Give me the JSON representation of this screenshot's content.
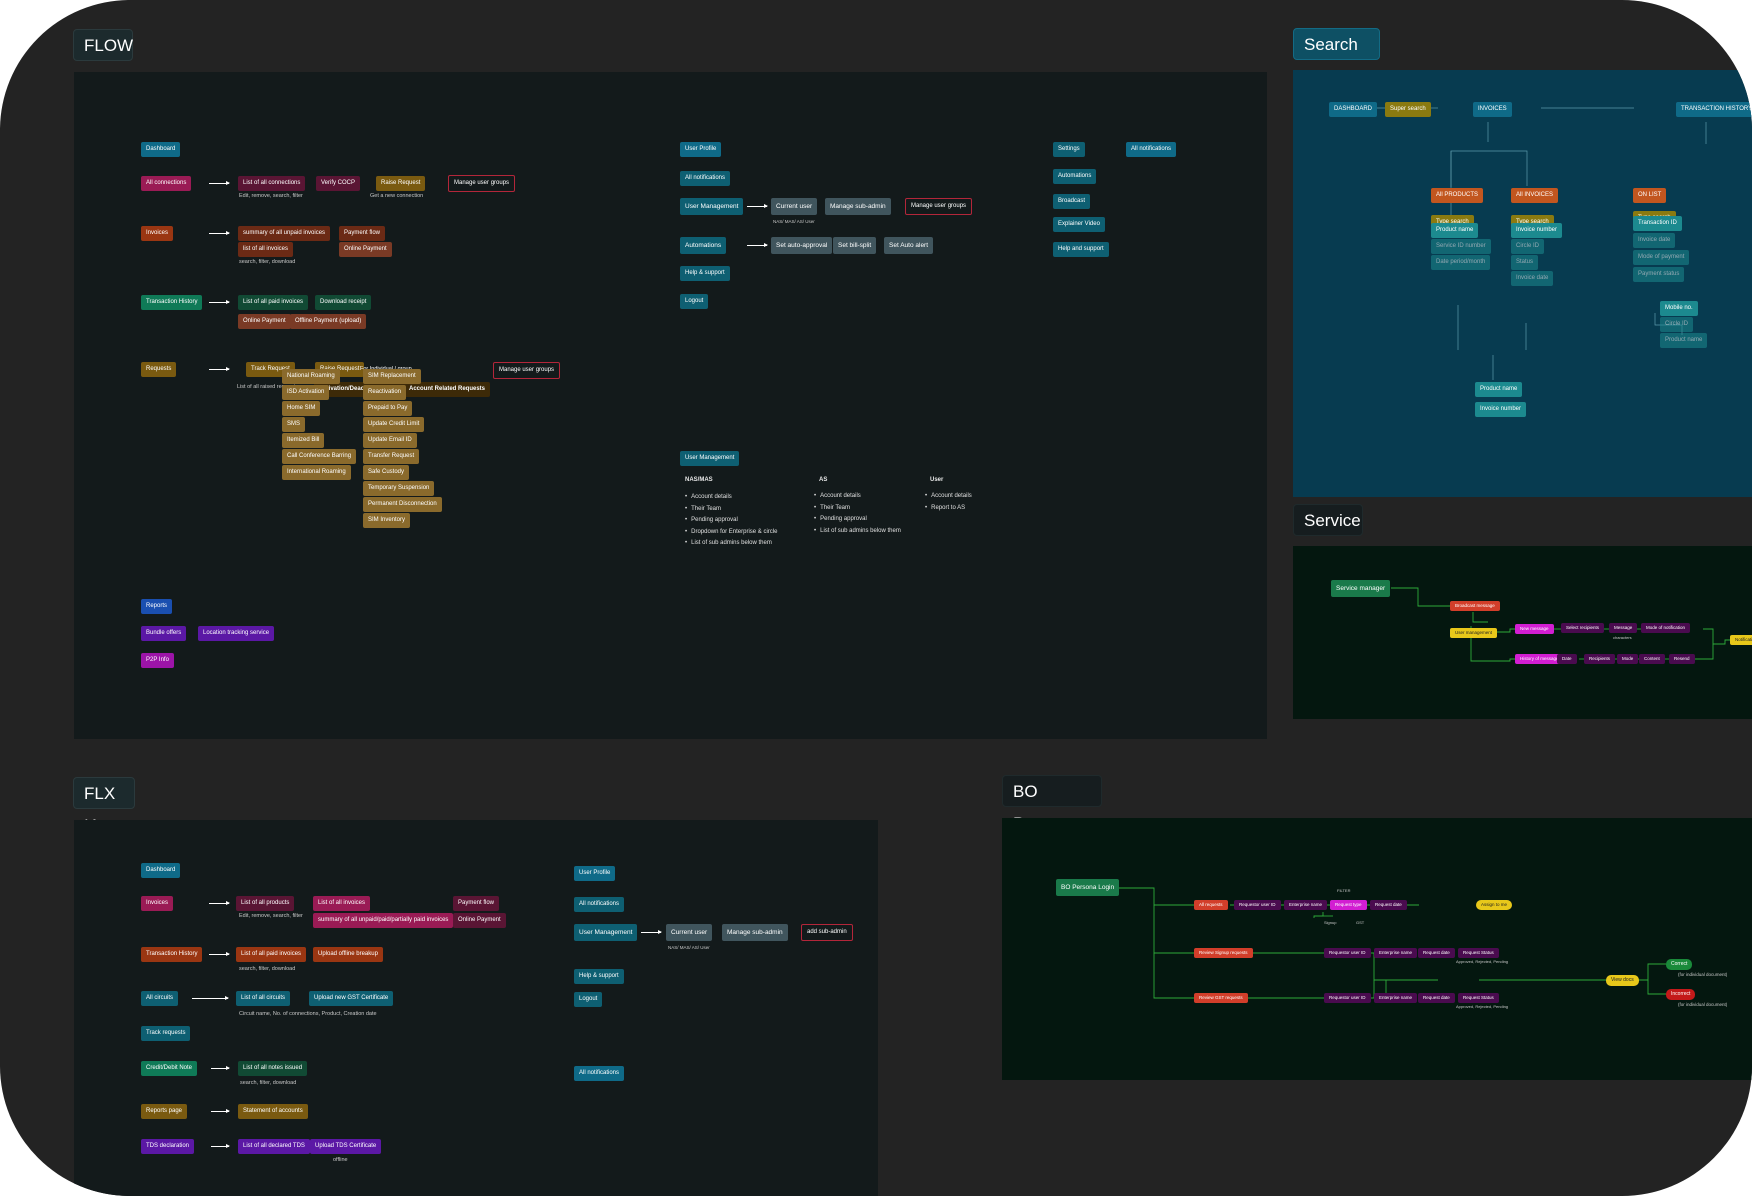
{
  "labels": {
    "flow": "FLOW",
    "search_ia": "Search IA",
    "service": "Service",
    "flx_ia": "FLX IA",
    "bo_persona": "BO Persona"
  },
  "flow": {
    "dashboard": "Dashboard",
    "all_connections": "All connections",
    "list_all_connections": "List of all connections",
    "verify_cocp": "Verify COCP",
    "raise_request": "Raise Request",
    "manage_user_groups": "Manage user groups",
    "note_edit": "Edit, remove, search, filter",
    "note_new_connection": "Get a new connection",
    "invoices": "Invoices",
    "summary_unpaid": "summary of all unpaid invoices",
    "payment_flow": "Payment flow",
    "list_all_invoices": "list of all invoices",
    "online_payment": "Online Payment",
    "note_search_filter_download": "search, filter, download",
    "transaction_history": "Transaction History",
    "list_paid_invoices": "List of all paid invoices",
    "download_receipt": "Download receipt",
    "online_payment2": "Online Payment",
    "offline_payment_upload": "Offline Payment (upload)",
    "requests": "Requests",
    "track_request": "Track Request",
    "raise_request2": "Raise Request",
    "for_individual_group": "For Individual / group",
    "manage_user_groups2": "Manage user groups",
    "note_raised_requests": "List of all raised requests",
    "activation_deactivation": "Activation/Deactivation Requests",
    "account_related": "Account Related Requests",
    "activation_items": [
      "National Roaming",
      "ISD Activation",
      "Home SIM",
      "SMS",
      "Itemized Bill",
      "Call Conference Barring",
      "International Roaming"
    ],
    "account_items": [
      "SIM Replacement",
      "Reactivation",
      "Prepaid to Pay",
      "Update Credit Limit",
      "Update Email ID",
      "Transfer Request",
      "Safe Custody",
      "Temporary Suspension",
      "Permanent Disconnection",
      "SIM Inventory"
    ],
    "reports": "Reports",
    "bundle_offers": "Bundle offers",
    "location_tracking": "Location tracking service",
    "p2p_info": "P2P Info",
    "user_profile": "User Profile",
    "all_notifications": "All notifications",
    "user_management": "User Management",
    "current_user": "Current user",
    "manage_sub_admin": "Manage sub-admin",
    "manage_user_groups3": "Manage user groups",
    "note_nas": "NAS/ MAS/ AS/ User",
    "automations": "Automations",
    "set_auto_approval": "Set auto-approval",
    "set_bill_split": "Set bill-split",
    "set_auto_alert": "Set Auto alert",
    "help_support": "Help & support",
    "logout": "Logout",
    "settings": "Settings",
    "all_notifications2": "All notifications",
    "automations2": "Automations",
    "broadcast": "Broadcast",
    "explainer_video": "Explainer Video",
    "help_and_support": "Help and support",
    "user_management2": "User Management",
    "nas_mas_head": "NAS/MAS",
    "nas_mas_items": [
      "Account details",
      "Their Team",
      "Pending approval",
      "Dropdown for Enterprise & circle",
      "List of sub admins below them"
    ],
    "as_head": "AS",
    "as_items": [
      "Account details",
      "Their Team",
      "Pending approval",
      "List of sub admins below them"
    ],
    "user_head": "User",
    "user_items": [
      "Account details",
      "Report to AS"
    ]
  },
  "search_ia": {
    "dashboard": "DASHBOARD",
    "super_search": "Super search",
    "invoices": "INVOICES",
    "transaction_history": "TRANSACTION HISTORY",
    "all_products": "All PRODUCTS",
    "all_invoices": "All INVOICES",
    "on_list": "ON LIST",
    "type_search": "Type search",
    "type_search2": "Type search",
    "type_search3": "Type search",
    "col1": [
      "Product name",
      "Service ID number",
      "Date period/month"
    ],
    "col2": [
      "Invoice number",
      "Circle ID",
      "Status",
      "Invoice date"
    ],
    "col3": [
      "Transaction ID",
      "Invoice date",
      "Mode of payment",
      "Payment status"
    ],
    "col3b": [
      "Mobile no.",
      "Circle ID",
      "Product name"
    ],
    "product_name": "Product name",
    "invoice_number": "Invoice number"
  },
  "service": {
    "service_manager": "Service manager",
    "broadcast_message": "Broadcast message",
    "user_management": "User management",
    "new_message": "New message",
    "select_recipients": "Select recipients",
    "message": "Message",
    "characters": "characters",
    "mode_of_notification": "Mode of notification",
    "notification": "Notification",
    "history_of_message": "History of message",
    "date": "Date",
    "recipients": "Recipients",
    "mode": "Mode",
    "content": "Content",
    "resend": "Resend"
  },
  "flx": {
    "dashboard": "Dashboard",
    "invoices": "Invoices",
    "list_all_products": "List of all products",
    "list_all_invoices": "List of all invoices",
    "payment_flow": "Payment flow",
    "note_edit": "Edit, remove, search, filter",
    "summary_unpaid": "summary of all unpaid/paid/partially paid invoices",
    "online_payment": "Online Payment",
    "transaction_history": "Transaction History",
    "list_paid_invoices": "List of all paid invoices",
    "upload_offline": "Upload offline breakup",
    "note_search": "search, filter, download",
    "all_circuits": "All circuits",
    "list_all_circuits": "List of all circuits",
    "upload_gst": "Upload new GST Certificate",
    "note_circuit": "Circuit name, No. of connections, Product, Creation date",
    "track_requests": "Track requests",
    "credit_debit": "Credit/Debit Note",
    "list_all_notes": "List of all notes issued",
    "note_search2": "search, filter, download",
    "reports_page": "Reports page",
    "statement_accounts": "Statement of accounts",
    "tds_declaration": "TDS declaration",
    "list_declared_tds": "List of all declared TDS",
    "upload_tds": "Upload TDS Certificate",
    "note_offline": "offline",
    "user_profile": "User Profile",
    "all_notifications": "All notifications",
    "user_management": "User Management",
    "current_user": "Current user",
    "manage_sub_admin": "Manage sub-admin",
    "add_sub_admin": "add sub-admin",
    "note_nas": "NAS/ MAS/ AS/ User",
    "help_support": "Help & support",
    "logout": "Logout",
    "all_notifications2": "All notifications"
  },
  "bo": {
    "login": "BO Persona Login",
    "all_requests": "All requests",
    "requestor_user_id": "Requestor user ID",
    "enterprise_name": "Enterprise name",
    "request_type": "Request type",
    "request_date": "Request date",
    "assign_to_me": "Assign to me",
    "filter": "FILTER",
    "signup": "Signup",
    "gst": "GST",
    "review_signup": "Review Signup requests",
    "requestor_user_id2": "Requestor user ID",
    "enterprise_name2": "Enterprise name",
    "request_date2": "Request date",
    "request_status": "Request Status",
    "status_note": "Approved, Rejected, Pending",
    "review_gst": "Review GST requests",
    "requestor_user_id3": "Requestor user ID",
    "enterprise_name3": "Enterprise name",
    "request_date3": "Request date",
    "request_status2": "Request Status",
    "status_note2": "Approved, Rejected, Pending",
    "view_docs": "View docs",
    "correct": "Correct",
    "correct_note": "(for individual document)",
    "incorrect": "Incorrect",
    "incorrect_note": "(for individual document)"
  }
}
